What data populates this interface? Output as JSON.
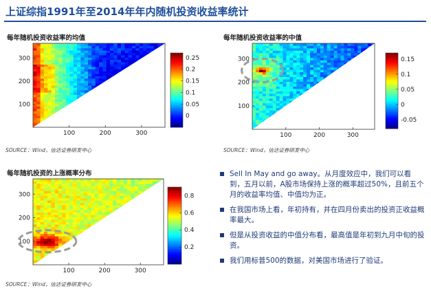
{
  "header": {
    "title": "上证综指1991年至2014年年内随机投资收益率统计"
  },
  "panels": [
    {
      "title": "每年随机投资收益率的均值",
      "source": "SOURCE：Wind，信达证券研发中心"
    },
    {
      "title": "每年随机投资收益率的中值",
      "source": "SOURCE：Wind，信达证券研发中心"
    },
    {
      "title": "每年随机投资的上涨概率分布",
      "source": "SOURCE：Wind，信达证券研发中心"
    }
  ],
  "bullets": [
    "Sell In May and go away。从月度效应中，我们可以看到，五月以前，A股市场保持上涨的概率超过50%，且前五个月的收益率均值、中值均为正。",
    "在我国市场上看，年初持有，并在四月份卖出的投资正收益概率最大。",
    "但是从投资收益的中值分布看，最高值是年初到九月中旬的投资。",
    "我们用标普500的数据，对美国市场进行了验证。"
  ],
  "colors": {
    "title": "#1f4e9a",
    "bullet_text": "#1f3a78",
    "highlight_ellipse": "#9a9a9a"
  },
  "chart_data": [
    {
      "type": "heatmap",
      "title": "每年随机投资收益率的均值",
      "xlim": [
        0,
        365
      ],
      "ylim": [
        0,
        365
      ],
      "x_ticks": [
        "100",
        "200",
        "300"
      ],
      "y_ticks": [
        "100",
        "200",
        "300"
      ],
      "colorbar": {
        "min": -0.05,
        "max": 0.27,
        "ticks": [
          "0",
          "0.05",
          "0.1",
          "0.15",
          "0.2",
          "0.25"
        ]
      },
      "shape": "upper-left triangle (y >= x)",
      "highlight": null
    },
    {
      "type": "heatmap",
      "title": "每年随机投资收益率的中值",
      "xlim": [
        0,
        365
      ],
      "ylim": [
        0,
        365
      ],
      "x_ticks": [
        "100",
        "200",
        "300"
      ],
      "y_ticks": [
        "100",
        "200",
        "300"
      ],
      "colorbar": {
        "min": -0.08,
        "max": 0.17,
        "ticks": [
          "-0.05",
          "0",
          "0.05",
          "0.1",
          "0.15"
        ]
      },
      "shape": "upper-left triangle (y >= x)",
      "highlight": {
        "center": [
          30,
          250
        ]
      }
    },
    {
      "type": "heatmap",
      "title": "每年随机投资的上涨概率分布",
      "xlim": [
        0,
        365
      ],
      "ylim": [
        0,
        365
      ],
      "x_ticks": [
        "100",
        "200",
        "300"
      ],
      "y_ticks": [
        "100",
        "200",
        "300"
      ],
      "colorbar": {
        "min": 0,
        "max": 0.9,
        "ticks": [
          "0.2",
          "0.4",
          "0.6",
          "0.8"
        ]
      },
      "shape": "upper-left triangle (y >= x)",
      "highlight": {
        "center": [
          40,
          100
        ]
      }
    }
  ]
}
